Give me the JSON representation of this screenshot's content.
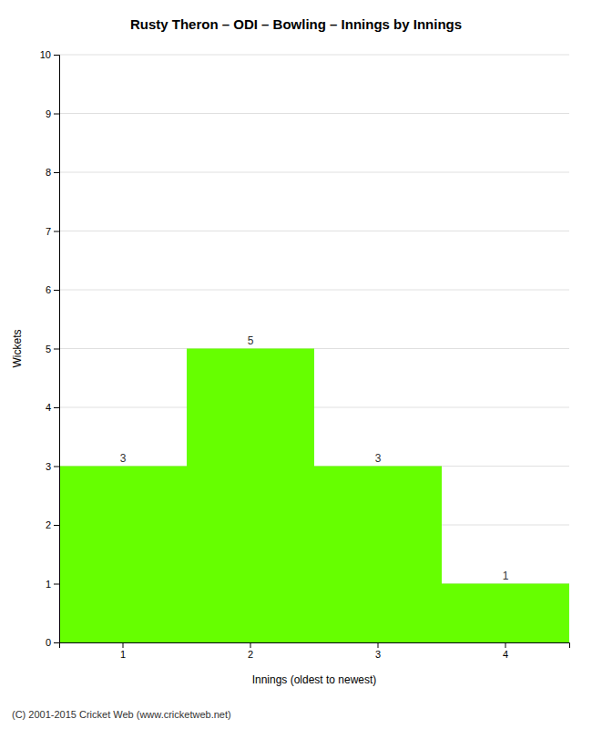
{
  "chart_data": {
    "type": "bar",
    "title": "Rusty Theron – ODI – Bowling – Innings by Innings",
    "xlabel": "Innings (oldest to newest)",
    "ylabel": "Wickets",
    "footer": "(C) 2001-2015 Cricket Web (www.cricketweb.net)",
    "categories": [
      "1",
      "2",
      "3",
      "4"
    ],
    "values": [
      3,
      5,
      3,
      1
    ],
    "color": "#66ff00",
    "ylim": [
      0,
      10
    ],
    "yticks": [
      0,
      1,
      2,
      3,
      4,
      5,
      6,
      7,
      8,
      9,
      10
    ],
    "grid": true,
    "data_labels": true
  }
}
